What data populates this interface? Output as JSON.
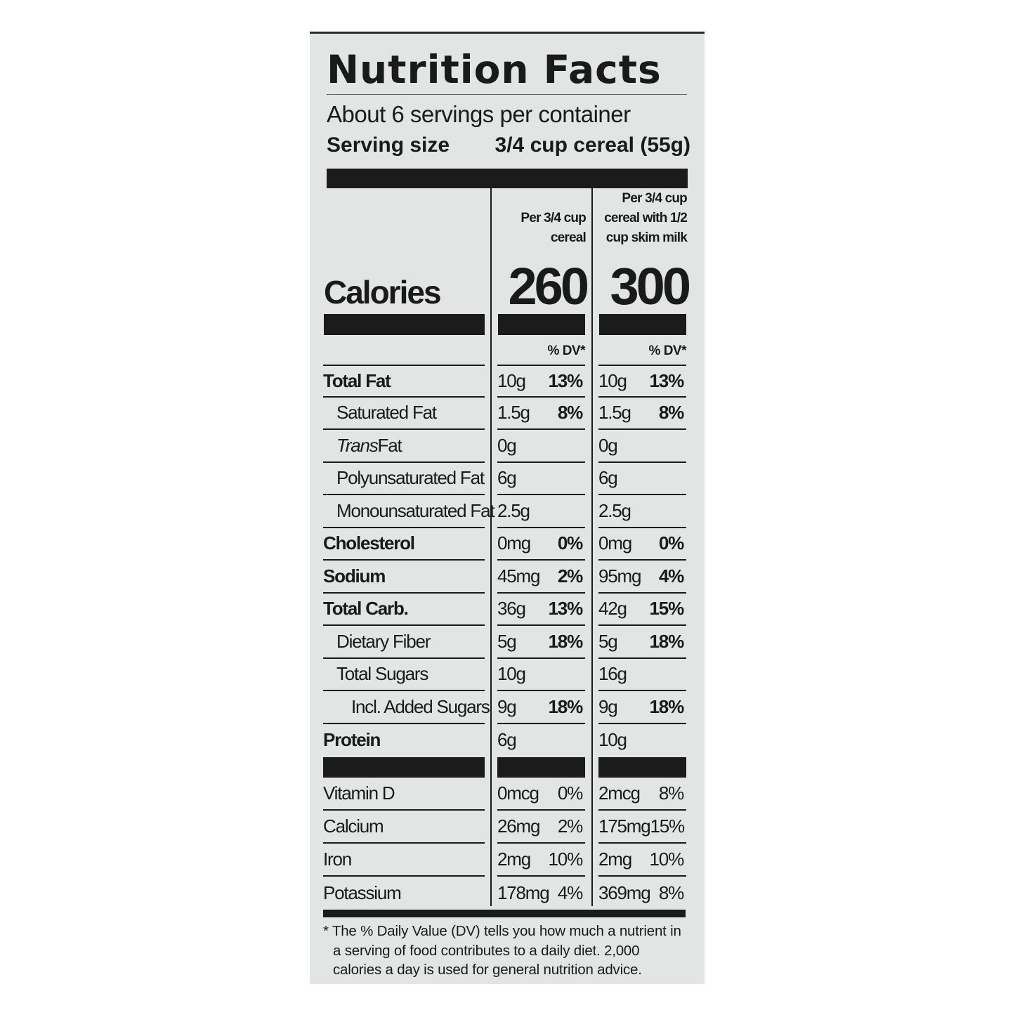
{
  "label": {
    "title": "Nutrition Facts",
    "servings_per_container": "About 6 servings per container",
    "serving_size_label": "Serving size",
    "serving_size_value": "3/4 cup cereal (55g)",
    "columns": [
      {
        "header": [
          "Per 3/4 cup",
          "cereal"
        ],
        "calories": "260",
        "dv_label": "% DV*"
      },
      {
        "header": [
          "Per 3/4 cup",
          "cereal with 1/2",
          "cup skim milk"
        ],
        "calories": "300",
        "dv_label": "% DV*"
      }
    ],
    "calories_label": "Calories",
    "nutrients": [
      {
        "name": "Total Fat",
        "v1": "10g",
        "p1": "13%",
        "v2": "10g",
        "p2": "13%"
      },
      {
        "name": "Saturated Fat",
        "v1": "1.5g",
        "p1": "8%",
        "v2": "1.5g",
        "p2": "8%"
      },
      {
        "name_italic": "Trans",
        "name": " Fat",
        "v1": "0g",
        "p1": "",
        "v2": "0g",
        "p2": ""
      },
      {
        "name": "Polyunsaturated Fat",
        "v1": "6g",
        "p1": "",
        "v2": "6g",
        "p2": ""
      },
      {
        "name": "Monounsaturated Fat",
        "v1": "2.5g",
        "p1": "",
        "v2": "2.5g",
        "p2": ""
      },
      {
        "name": "Cholesterol",
        "v1": "0mg",
        "p1": "0%",
        "v2": "0mg",
        "p2": "0%"
      },
      {
        "name": "Sodium",
        "v1": "45mg",
        "p1": "2%",
        "v2": "95mg",
        "p2": "4%"
      },
      {
        "name": "Total Carb.",
        "v1": "36g",
        "p1": "13%",
        "v2": "42g",
        "p2": "15%"
      },
      {
        "name": "Dietary Fiber",
        "v1": "5g",
        "p1": "18%",
        "v2": "5g",
        "p2": "18%"
      },
      {
        "name": "Total Sugars",
        "v1": "10g",
        "p1": "",
        "v2": "16g",
        "p2": ""
      },
      {
        "name": "Incl. Added Sugars",
        "v1": "9g",
        "p1": "18%",
        "v2": "9g",
        "p2": "18%"
      },
      {
        "name": "Protein",
        "v1": "6g",
        "p1": "",
        "v2": "10g",
        "p2": ""
      }
    ],
    "vitamins": [
      {
        "name": "Vitamin D",
        "v1": "0mcg",
        "p1": "0%",
        "v2": "2mcg",
        "p2": "8%"
      },
      {
        "name": "Calcium",
        "v1": "26mg",
        "p1": "2%",
        "v2": "175mg",
        "p2": "15%"
      },
      {
        "name": "Iron",
        "v1": "2mg",
        "p1": "10%",
        "v2": "2mg",
        "p2": "10%"
      },
      {
        "name": "Potassium",
        "v1": "178mg",
        "p1": "4%",
        "v2": "369mg",
        "p2": "8%"
      }
    ],
    "footnote": [
      "* The % Daily Value (DV) tells you how much a nutrient in",
      "a serving of food contributes to a daily diet. 2,000",
      "calories a day is used for general nutrition advice."
    ]
  }
}
